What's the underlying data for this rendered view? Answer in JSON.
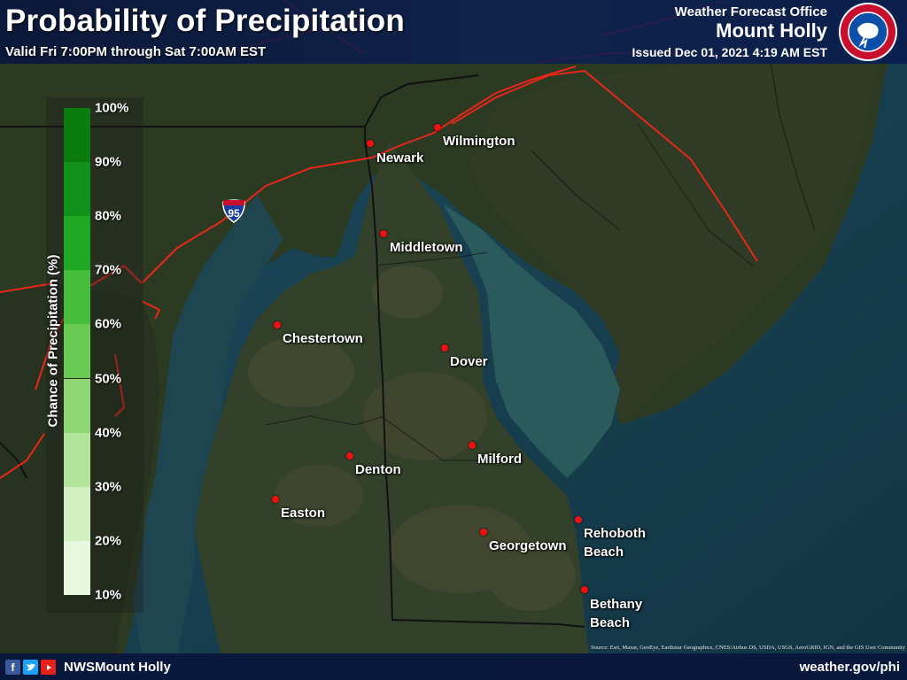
{
  "header": {
    "title": "Probability of Precipitation",
    "valid": "Valid Fri 7:00PM through Sat 7:00AM EST",
    "office_label": "Weather Forecast Office",
    "office_name": "Mount Holly",
    "issued": "Issued Dec 01, 2021 4:19 AM EST"
  },
  "legend": {
    "title": "Chance of Precipitation (%)",
    "ticks": [
      "100%",
      "90%",
      "80%",
      "70%",
      "60%",
      "50%",
      "40%",
      "30%",
      "20%",
      "10%"
    ],
    "colors": [
      "#0b7d0f",
      "#10921a",
      "#1fa823",
      "#45bd3a",
      "#69ca52",
      "#8fd774",
      "#b3e49b",
      "#d2efc2",
      "#e8f7df"
    ]
  },
  "cities": [
    {
      "name": "Wilmington"
    },
    {
      "name": "Newark"
    },
    {
      "name": "Middletown"
    },
    {
      "name": "Chestertown"
    },
    {
      "name": "Dover"
    },
    {
      "name": "Milford"
    },
    {
      "name": "Denton"
    },
    {
      "name": "Easton"
    },
    {
      "name": "Georgetown"
    },
    {
      "name": "Rehoboth Beach"
    },
    {
      "name": "Bethany Beach"
    }
  ],
  "interstate_shield": "95",
  "footer": {
    "social_icons": [
      "facebook-icon",
      "twitter-icon",
      "youtube-icon"
    ],
    "handle": "NWSMount Holly",
    "website": "weather.gov/phi",
    "source": "Source: Esri, Maxar, GeoEye, Earthstar Geographics, CNES/Airbus DS, USDA, USGS, AeroGRID, IGN, and the GIS User Community"
  },
  "colors": {
    "water": "#1e4a56",
    "land": "#2e3a22",
    "roads": "#e8261c",
    "borders": "#111111",
    "city_dot": "#e11111",
    "header_bg": "#0a1e50"
  }
}
